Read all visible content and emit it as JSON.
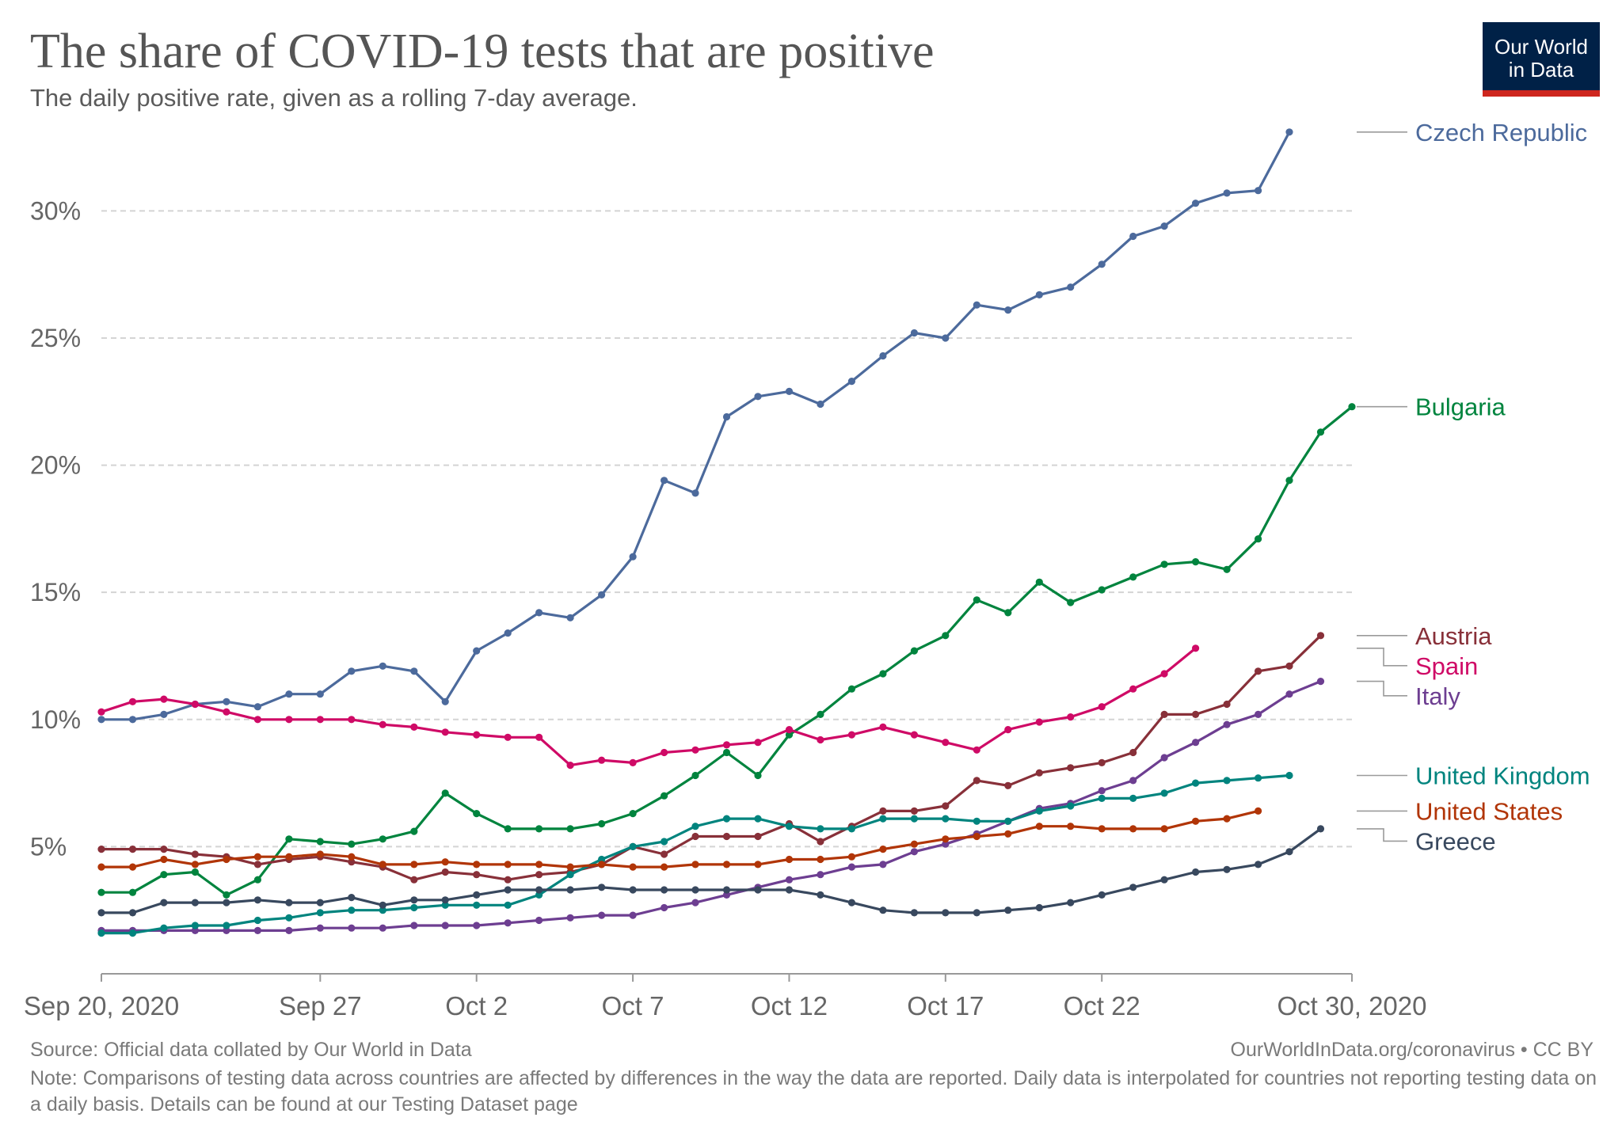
{
  "header": {
    "title": "The share of COVID-19 tests that are positive",
    "subtitle": "The daily positive rate, given as a rolling 7-day average.",
    "logo_line1": "Our World",
    "logo_line2": "in Data"
  },
  "footer": {
    "source": "Source: Official data collated by Our World in Data",
    "license": "OurWorldInData.org/coronavirus • CC BY",
    "note": "Note: Comparisons of testing data across countries are affected by differences in the way the data are reported. Daily data is interpolated for countries not reporting testing data on a daily basis. Details can be found at our Testing Dataset page"
  },
  "chart_data": {
    "type": "line",
    "title": "The share of COVID-19 tests that are positive",
    "subtitle": "The daily positive rate, given as a rolling 7-day average.",
    "x_start": "2020-09-20",
    "x_end": "2020-10-30",
    "x_ticks": [
      {
        "date": "2020-09-20",
        "label": "Sep 20, 2020"
      },
      {
        "date": "2020-09-27",
        "label": "Sep 27"
      },
      {
        "date": "2020-10-02",
        "label": "Oct 2"
      },
      {
        "date": "2020-10-07",
        "label": "Oct 7"
      },
      {
        "date": "2020-10-12",
        "label": "Oct 12"
      },
      {
        "date": "2020-10-17",
        "label": "Oct 17"
      },
      {
        "date": "2020-10-22",
        "label": "Oct 22"
      },
      {
        "date": "2020-10-30",
        "label": "Oct 30, 2020"
      }
    ],
    "y_ticks": [
      {
        "value": 5,
        "label": "5%"
      },
      {
        "value": 10,
        "label": "10%"
      },
      {
        "value": 15,
        "label": "15%"
      },
      {
        "value": 20,
        "label": "20%"
      },
      {
        "value": 25,
        "label": "25%"
      },
      {
        "value": 30,
        "label": "30%"
      }
    ],
    "ylim": [
      0,
      33
    ],
    "grid": true,
    "legend": "right",
    "series": [
      {
        "name": "Czech Republic",
        "color": "#4c6a9c",
        "start": "2020-09-20",
        "values": [
          10.0,
          10.0,
          10.2,
          10.6,
          10.7,
          10.5,
          11.0,
          11.0,
          11.9,
          12.1,
          11.9,
          10.7,
          12.7,
          13.4,
          14.2,
          14.0,
          14.9,
          16.4,
          19.4,
          18.9,
          21.9,
          22.7,
          22.9,
          22.4,
          23.3,
          24.3,
          25.2,
          25.0,
          26.3,
          26.1,
          26.7,
          27.0,
          27.9,
          29.0,
          29.4,
          30.3,
          30.7,
          30.8,
          33.1
        ]
      },
      {
        "name": "Bulgaria",
        "color": "#00843e",
        "start": "2020-09-20",
        "values": [
          3.2,
          3.2,
          3.9,
          4.0,
          3.1,
          3.7,
          5.3,
          5.2,
          5.1,
          5.3,
          5.6,
          7.1,
          6.3,
          5.7,
          5.7,
          5.7,
          5.9,
          6.3,
          7.0,
          7.8,
          8.7,
          7.8,
          9.4,
          10.2,
          11.2,
          11.8,
          12.7,
          13.3,
          14.7,
          14.2,
          15.4,
          14.6,
          15.1,
          15.6,
          16.1,
          16.2,
          15.9,
          17.1,
          19.4,
          21.3,
          22.3
        ]
      },
      {
        "name": "Austria",
        "color": "#883039",
        "start": "2020-09-20",
        "values": [
          4.9,
          4.9,
          4.9,
          4.7,
          4.6,
          4.3,
          4.5,
          4.6,
          4.4,
          4.2,
          3.7,
          4.0,
          3.9,
          3.7,
          3.9,
          4.0,
          4.3,
          5.0,
          4.7,
          5.4,
          5.4,
          5.4,
          5.9,
          5.2,
          5.8,
          6.4,
          6.4,
          6.6,
          7.6,
          7.4,
          7.9,
          8.1,
          8.3,
          8.7,
          10.2,
          10.2,
          10.6,
          11.9,
          12.1,
          13.3
        ]
      },
      {
        "name": "Spain",
        "color": "#cf0a66",
        "start": "2020-09-20",
        "values": [
          10.3,
          10.7,
          10.8,
          10.6,
          10.3,
          10.0,
          10.0,
          10.0,
          10.0,
          9.8,
          9.7,
          9.5,
          9.4,
          9.3,
          9.3,
          8.2,
          8.4,
          8.3,
          8.7,
          8.8,
          9.0,
          9.1,
          9.6,
          9.2,
          9.4,
          9.7,
          9.4,
          9.1,
          8.8,
          9.6,
          9.9,
          10.1,
          10.5,
          11.2,
          11.8,
          12.8
        ]
      },
      {
        "name": "Italy",
        "color": "#6d3e91",
        "start": "2020-09-20",
        "values": [
          1.7,
          1.7,
          1.7,
          1.7,
          1.7,
          1.7,
          1.7,
          1.8,
          1.8,
          1.8,
          1.9,
          1.9,
          1.9,
          2.0,
          2.1,
          2.2,
          2.3,
          2.3,
          2.6,
          2.8,
          3.1,
          3.4,
          3.7,
          3.9,
          4.2,
          4.3,
          4.8,
          5.1,
          5.5,
          6.0,
          6.5,
          6.7,
          7.2,
          7.6,
          8.5,
          9.1,
          9.8,
          10.2,
          11.0,
          11.5
        ]
      },
      {
        "name": "United Kingdom",
        "color": "#00847e",
        "start": "2020-09-20",
        "values": [
          1.6,
          1.6,
          1.8,
          1.9,
          1.9,
          2.1,
          2.2,
          2.4,
          2.5,
          2.5,
          2.6,
          2.7,
          2.7,
          2.7,
          3.1,
          3.9,
          4.5,
          5.0,
          5.2,
          5.8,
          6.1,
          6.1,
          5.8,
          5.7,
          5.7,
          6.1,
          6.1,
          6.1,
          6.0,
          6.0,
          6.4,
          6.6,
          6.9,
          6.9,
          7.1,
          7.5,
          7.6,
          7.7,
          7.8
        ]
      },
      {
        "name": "United States",
        "color": "#b13507",
        "start": "2020-09-20",
        "values": [
          4.2,
          4.2,
          4.5,
          4.3,
          4.5,
          4.6,
          4.6,
          4.7,
          4.6,
          4.3,
          4.3,
          4.4,
          4.3,
          4.3,
          4.3,
          4.2,
          4.3,
          4.2,
          4.2,
          4.3,
          4.3,
          4.3,
          4.5,
          4.5,
          4.6,
          4.9,
          5.1,
          5.3,
          5.4,
          5.5,
          5.8,
          5.8,
          5.7,
          5.7,
          5.7,
          6.0,
          6.1,
          6.4
        ]
      },
      {
        "name": "Greece",
        "color": "#38485e",
        "start": "2020-09-20",
        "values": [
          2.4,
          2.4,
          2.8,
          2.8,
          2.8,
          2.9,
          2.8,
          2.8,
          3.0,
          2.7,
          2.9,
          2.9,
          3.1,
          3.3,
          3.3,
          3.3,
          3.4,
          3.3,
          3.3,
          3.3,
          3.3,
          3.3,
          3.3,
          3.1,
          2.8,
          2.5,
          2.4,
          2.4,
          2.4,
          2.5,
          2.6,
          2.8,
          3.1,
          3.4,
          3.7,
          4.0,
          4.1,
          4.3,
          4.8,
          5.7
        ]
      }
    ]
  },
  "colors": {
    "grid": "#d4d4d4",
    "axis_text": "#666666",
    "logo_bg": "#002147",
    "logo_accent": "#ce261e"
  }
}
